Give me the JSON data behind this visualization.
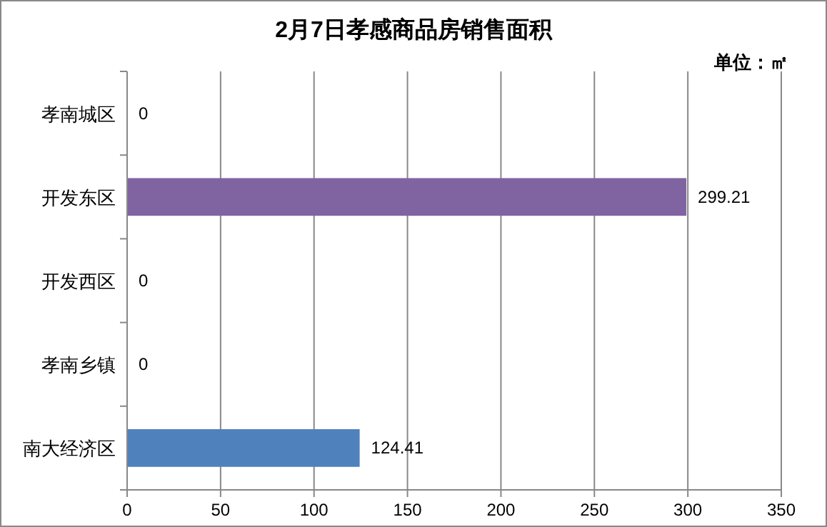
{
  "chart_data": {
    "type": "bar",
    "orientation": "horizontal",
    "title": "2月7日孝感商品房销售面积",
    "categories": [
      "孝南城区",
      "开发东区",
      "开发西区",
      "孝南乡镇",
      "南大经济区"
    ],
    "values": [
      0,
      299.21,
      0,
      0,
      124.41
    ],
    "colors": [
      "#4f81bd",
      "#8064a2",
      "#4f81bd",
      "#4f81bd",
      "#4f81bd"
    ],
    "xlim": [
      0,
      350
    ],
    "xticks": [
      0,
      50,
      100,
      150,
      200,
      250,
      300,
      350
    ],
    "grid": "x",
    "data_labels": true,
    "annotations": [
      "单位：㎡"
    ]
  }
}
